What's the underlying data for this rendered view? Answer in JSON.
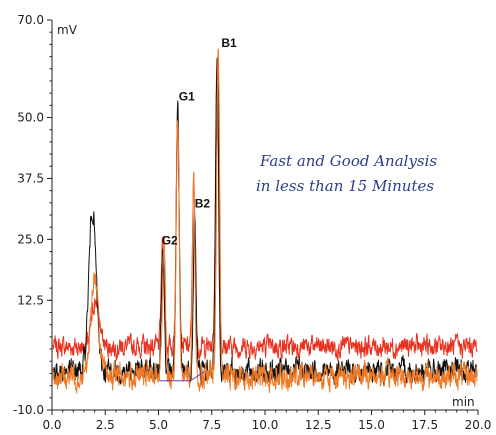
{
  "chart_data": {
    "type": "line",
    "title": "",
    "xlabel": "min",
    "ylabel": "mV",
    "xlim": [
      0.0,
      20.0
    ],
    "ylim": [
      -10.0,
      70.0
    ],
    "x_ticks": [
      "0.0",
      "2.5",
      "5.0",
      "7.5",
      "10.0",
      "12.5",
      "15.0",
      "17.5",
      "20.0"
    ],
    "y_ticks": [
      "-10.0",
      "12.5",
      "25.0",
      "37.5",
      "50.0",
      "70.0"
    ],
    "grid": false,
    "legend": "none",
    "series": [
      {
        "color": "#e8311f",
        "peaks": [
          {
            "x": 2.05,
            "y": 12.5
          },
          {
            "x": 5.2,
            "y": 25.3
          },
          {
            "x": 5.9,
            "y": 51.0
          },
          {
            "x": 6.65,
            "y": 36.5
          },
          {
            "x": 7.75,
            "y": 64.0
          }
        ]
      },
      {
        "color": "#111111",
        "peaks": [
          {
            "x": 1.9,
            "y": 31.5
          },
          {
            "x": 5.2,
            "y": 23.5
          },
          {
            "x": 5.9,
            "y": 51.0
          },
          {
            "x": 6.7,
            "y": 29.5
          },
          {
            "x": 7.75,
            "y": 62.0
          }
        ]
      },
      {
        "color": "#f07a26",
        "peaks": [
          {
            "x": 2.0,
            "y": 18.0
          },
          {
            "x": 5.25,
            "y": 25.5
          },
          {
            "x": 5.9,
            "y": 50.5
          },
          {
            "x": 6.65,
            "y": 37.0
          },
          {
            "x": 7.8,
            "y": 64.5
          }
        ]
      }
    ],
    "peak_labels": [
      {
        "text": "G2",
        "x": 5.15,
        "y": 24.0
      },
      {
        "text": "G1",
        "x": 5.95,
        "y": 53.5
      },
      {
        "text": "B2",
        "x": 6.7,
        "y": 31.5
      },
      {
        "text": "B1",
        "x": 7.95,
        "y": 64.5
      }
    ],
    "annotation": {
      "lines": [
        "Fast and Good Analysis",
        "in less than 15 Minutes"
      ]
    }
  }
}
